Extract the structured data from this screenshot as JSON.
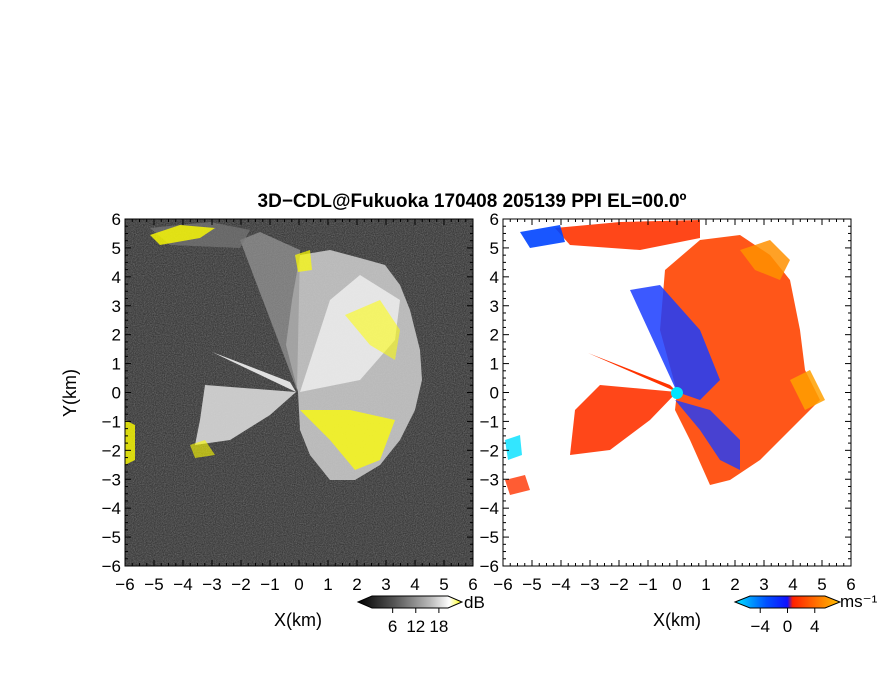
{
  "title": "3D−CDL@Fukuoka 170408 205139 PPI EL=00.0º",
  "chart_data": [
    {
      "type": "heatmap",
      "name": "reflectivity-ppi",
      "xlabel": "X(km)",
      "ylabel": "Y(km)",
      "xlim": [
        -6,
        6
      ],
      "ylim": [
        -6,
        6
      ],
      "x_ticks": [
        -6,
        -5,
        -4,
        -3,
        -2,
        -1,
        0,
        1,
        2,
        3,
        4,
        5,
        6
      ],
      "y_ticks": [
        -6,
        -5,
        -4,
        -3,
        -2,
        -1,
        0,
        1,
        2,
        3,
        4,
        5,
        6
      ],
      "x_tick_labels": [
        "−6",
        "−5",
        "−4",
        "−3",
        "−2",
        "−1",
        "0",
        "1",
        "2",
        "3",
        "4",
        "5",
        "6"
      ],
      "y_tick_labels": [
        "−6",
        "−5",
        "−4",
        "−3",
        "−2",
        "−1",
        "0",
        "1",
        "2",
        "3",
        "4",
        "5",
        "6"
      ],
      "colorbar": {
        "unit": "dB",
        "tick_values": [
          6,
          12,
          18
        ],
        "tick_labels": [
          "6",
          "12",
          "18"
        ],
        "colors": [
          "#000000",
          "#555555",
          "#aaaaaa",
          "#ffffff",
          "#ffff00"
        ]
      },
      "background_color": "#2b2b2b",
      "radar_origin": [
        0,
        0
      ]
    },
    {
      "type": "heatmap",
      "name": "doppler-velocity-ppi",
      "xlabel": "X(km)",
      "xlim": [
        -6,
        6
      ],
      "ylim": [
        -6,
        6
      ],
      "x_ticks": [
        -6,
        -5,
        -4,
        -3,
        -2,
        -1,
        0,
        1,
        2,
        3,
        4,
        5,
        6
      ],
      "y_ticks": [
        -6,
        -5,
        -4,
        -3,
        -2,
        -1,
        0,
        1,
        2,
        3,
        4,
        5,
        6
      ],
      "x_tick_labels": [
        "−6",
        "−5",
        "−4",
        "−3",
        "−2",
        "−1",
        "0",
        "1",
        "2",
        "3",
        "4",
        "5",
        "6"
      ],
      "y_tick_labels": [
        "−6",
        "−5",
        "−4",
        "−3",
        "−2",
        "−1",
        "0",
        "1",
        "2",
        "3",
        "4",
        "5",
        "6"
      ],
      "colorbar": {
        "unit": "ms⁻¹",
        "tick_values": [
          -4,
          0,
          4
        ],
        "tick_labels": [
          "−4",
          "0",
          "4"
        ],
        "colors": [
          "#00e5ff",
          "#0050ff",
          "#ff2000",
          "#ff8000",
          "#ffc000"
        ]
      },
      "background_color": "#ffffff",
      "radar_origin": [
        0,
        0
      ]
    }
  ]
}
